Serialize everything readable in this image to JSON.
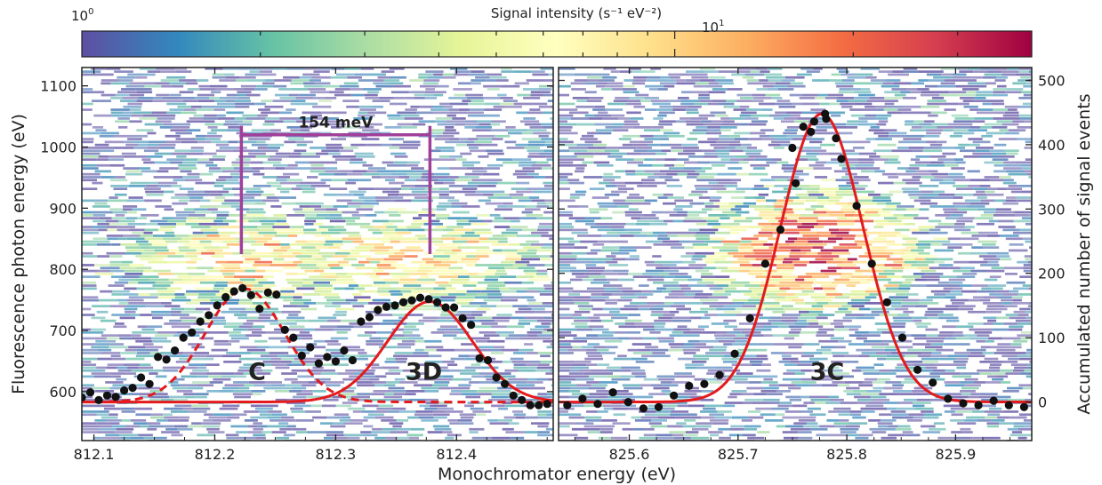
{
  "chart_data": [
    {
      "type": "colorbar",
      "label": "Signal intensity (s⁻¹ eV⁻²)",
      "scale": "log",
      "range": [
        1,
        40
      ],
      "major_ticks": [
        {
          "base": "10",
          "exp": "0",
          "value": 1
        },
        {
          "base": "10",
          "exp": "1",
          "value": 10
        }
      ],
      "colormap": [
        "#5e4fa2",
        "#3288bd",
        "#66c2a5",
        "#abdda4",
        "#e6f598",
        "#ffffbf",
        "#fee08b",
        "#fdae61",
        "#f46d43",
        "#d53e4f",
        "#9e0142"
      ]
    },
    {
      "type": "scatter",
      "panel": "left",
      "xlabel": "Monochromator energy (eV)",
      "ylabel": "Fluorescence photon energy (eV)",
      "y2label": "",
      "xlim": [
        812.09,
        812.48
      ],
      "ylim": [
        520,
        1130
      ],
      "y2lim": [
        -60,
        520
      ],
      "xticks": [
        "812.1",
        "812.2",
        "812.3",
        "812.4"
      ],
      "yticks": [
        "600",
        "700",
        "800",
        "900",
        "1000",
        "1100"
      ],
      "heat_spots": [
        {
          "x": 812.22,
          "y": 815,
          "sx": 0.05,
          "sy": 40,
          "peak": 7
        },
        {
          "x": 812.37,
          "y": 815,
          "sx": 0.05,
          "sy": 40,
          "peak": 7
        }
      ],
      "bracket": {
        "x1": 812.222,
        "x2": 812.378,
        "y_top": 1020,
        "y_bottom": 825,
        "label": "154 meV",
        "color": "#a0409a"
      },
      "labels": [
        {
          "text": "C",
          "x": 812.235,
          "y": 15
        },
        {
          "text": "3D",
          "x": 812.373,
          "y": 15
        }
      ],
      "events": {
        "x": [
          812.09,
          812.097,
          812.104,
          812.111,
          812.118,
          812.125,
          812.132,
          812.139,
          812.146,
          812.153,
          812.16,
          812.167,
          812.174,
          812.181,
          812.188,
          812.195,
          812.202,
          812.209,
          812.216,
          812.223,
          812.23,
          812.237,
          812.244,
          812.251,
          812.258,
          812.265,
          812.272,
          812.279,
          812.286,
          812.293,
          812.3,
          812.307,
          812.314,
          812.321,
          812.328,
          812.335,
          812.342,
          812.349,
          812.356,
          812.363,
          812.37,
          812.377,
          812.384,
          812.391,
          812.398,
          812.405,
          812.412,
          812.419,
          812.426,
          812.433,
          812.44,
          812.447,
          812.454,
          812.461,
          812.468,
          812.475
        ],
        "y": [
          7,
          15,
          3,
          10,
          8,
          18,
          22,
          38,
          28,
          70,
          66,
          80,
          100,
          108,
          125,
          135,
          150,
          163,
          172,
          177,
          166,
          145,
          170,
          167,
          112,
          100,
          72,
          85,
          60,
          70,
          63,
          80,
          65,
          125,
          132,
          143,
          148,
          150,
          155,
          158,
          162,
          160,
          155,
          147,
          147,
          130,
          120,
          68,
          65,
          38,
          28,
          10,
          3,
          -5,
          -5,
          -3
        ]
      },
      "fits": [
        {
          "name": "C",
          "style": "dashed",
          "color": "#e41a1c",
          "amp": 176,
          "mu": 812.225,
          "sigma": 0.033,
          "offset": 0
        },
        {
          "name": "3D",
          "style": "solid",
          "color": "#e41a1c",
          "amp": 156,
          "mu": 812.378,
          "sigma": 0.035,
          "offset": 0
        }
      ]
    },
    {
      "type": "scatter",
      "panel": "right",
      "xlabel": "Monochromator energy (eV)",
      "ylabel": "",
      "y2label": "Accumulated number of signal events",
      "xlim": [
        825.535,
        825.97
      ],
      "ylim": [
        520,
        1130
      ],
      "y2lim": [
        -60,
        520
      ],
      "xticks": [
        "825.6",
        "825.7",
        "825.8",
        "825.9"
      ],
      "y2ticks": [
        "0",
        "100",
        "200",
        "300",
        "400",
        "500"
      ],
      "heat_spots": [
        {
          "x": 825.773,
          "y": 830,
          "sx": 0.043,
          "sy": 42,
          "peak": 28
        }
      ],
      "labels": [
        {
          "text": "3C",
          "x": 825.782,
          "y": 15
        }
      ],
      "events": {
        "x": [
          825.543,
          825.557,
          825.571,
          825.585,
          825.599,
          825.613,
          825.627,
          825.641,
          825.655,
          825.669,
          825.683,
          825.697,
          825.711,
          825.725,
          825.739,
          825.753,
          825.767,
          825.781,
          825.795,
          825.809,
          825.823,
          825.837,
          825.851,
          825.865,
          825.879,
          825.893,
          825.907,
          825.921,
          825.935,
          825.949,
          825.963
        ],
        "y": [
          -5,
          5,
          -3,
          15,
          0,
          -10,
          -8,
          10,
          25,
          28,
          42,
          75,
          130,
          215,
          268,
          340,
          420,
          440,
          378,
          305,
          215,
          155,
          100,
          50,
          30,
          5,
          -2,
          -5,
          2,
          -5,
          -8
        ],
        "extra_x": [
          825.75,
          825.76,
          825.77,
          825.78,
          825.79
        ],
        "extra_y": [
          395,
          428,
          436,
          448,
          410
        ]
      },
      "fits": [
        {
          "name": "3C",
          "style": "solid",
          "color": "#e41a1c",
          "amp": 448,
          "mu": 825.777,
          "sigma": 0.038,
          "offset": 0
        }
      ]
    }
  ]
}
